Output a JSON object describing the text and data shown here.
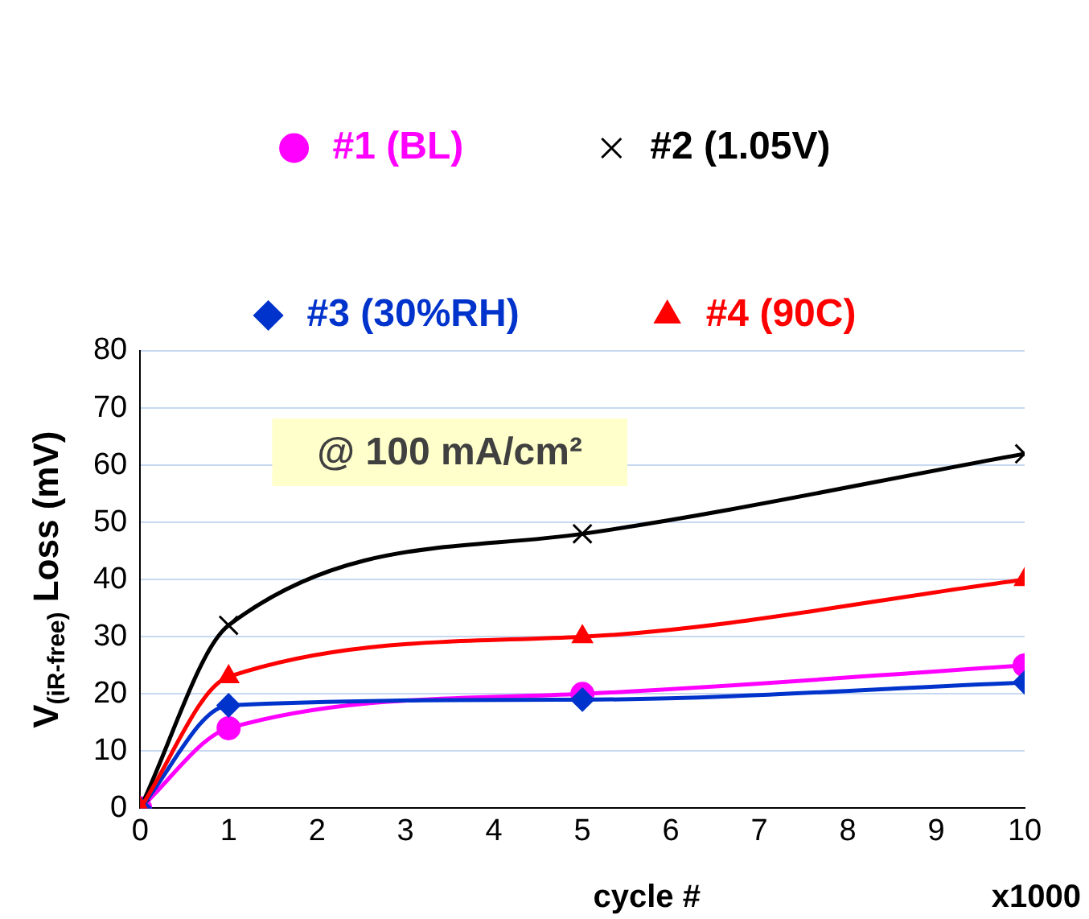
{
  "chart_data": {
    "type": "line",
    "xlabel": "cycle #",
    "ylabel": "V$_{(iR-free)}$ Loss (mV)",
    "x": [
      0,
      1,
      5,
      10
    ],
    "xlim": [
      0,
      10
    ],
    "xticks": [
      0,
      1,
      2,
      3,
      4,
      5,
      6,
      7,
      8,
      9,
      10
    ],
    "ylim": [
      0,
      80
    ],
    "yticks": [
      0,
      10,
      20,
      30,
      40,
      50,
      60,
      70,
      80
    ],
    "grid": "y",
    "legend": "top",
    "series": [
      {
        "name": "#1 (BL)",
        "color": "#ff00ff",
        "marker": "circle",
        "values": [
          0,
          14,
          20,
          25
        ]
      },
      {
        "name": "#2 (1.05V)",
        "color": "#000000",
        "marker": "cross",
        "values": [
          0,
          32,
          48,
          62
        ]
      },
      {
        "name": "#3 (30%RH)",
        "color": "#0033cc",
        "marker": "diamond",
        "values": [
          0,
          18,
          19,
          22
        ]
      },
      {
        "name": "#4 (90C)",
        "color": "#ff0000",
        "marker": "triangle",
        "values": [
          0,
          23,
          30,
          40
        ]
      }
    ],
    "annotations": [
      "@ 100 mA/cm²",
      "x1000"
    ]
  }
}
